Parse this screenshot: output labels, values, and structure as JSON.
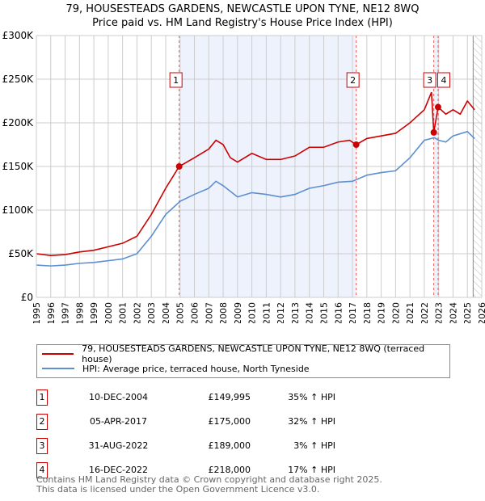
{
  "title": "79, HOUSESTEADS GARDENS, NEWCASTLE UPON TYNE, NE12 8WQ",
  "subtitle": "Price paid vs. HM Land Registry's House Price Index (HPI)",
  "chart_data": {
    "type": "line",
    "xlim": [
      1995,
      2026
    ],
    "ylim": [
      0,
      300000
    ],
    "x_ticks": [
      "1995",
      "1996",
      "1997",
      "1998",
      "1999",
      "2000",
      "2001",
      "2002",
      "2003",
      "2004",
      "2005",
      "2006",
      "2007",
      "2008",
      "2009",
      "2010",
      "2011",
      "2012",
      "2013",
      "2014",
      "2015",
      "2016",
      "2017",
      "2018",
      "2019",
      "2020",
      "2021",
      "2022",
      "2023",
      "2024",
      "2025",
      "2026"
    ],
    "y_ticks": [
      {
        "v": 0,
        "label": "£0"
      },
      {
        "v": 50000,
        "label": "£50K"
      },
      {
        "v": 100000,
        "label": "£100K"
      },
      {
        "v": 150000,
        "label": "£150K"
      },
      {
        "v": 200000,
        "label": "£200K"
      },
      {
        "v": 250000,
        "label": "£250K"
      },
      {
        "v": 300000,
        "label": "£300K"
      }
    ],
    "grid": true,
    "future_from": 2025.4,
    "series": [
      {
        "name": "79, HOUSESTEADS GARDENS, NEWCASTLE UPON TYNE, NE12 8WQ (terraced house)",
        "color": "#cc0000",
        "points": [
          [
            1995,
            50000
          ],
          [
            1996,
            48000
          ],
          [
            1997,
            49000
          ],
          [
            1998,
            52000
          ],
          [
            1999,
            54000
          ],
          [
            2000,
            58000
          ],
          [
            2001,
            62000
          ],
          [
            2002,
            70000
          ],
          [
            2003,
            95000
          ],
          [
            2004,
            125000
          ],
          [
            2004.94,
            149995
          ],
          [
            2006,
            160000
          ],
          [
            2007,
            170000
          ],
          [
            2007.5,
            180000
          ],
          [
            2008,
            175000
          ],
          [
            2008.5,
            160000
          ],
          [
            2009,
            155000
          ],
          [
            2010,
            165000
          ],
          [
            2011,
            158000
          ],
          [
            2012,
            158000
          ],
          [
            2013,
            162000
          ],
          [
            2014,
            172000
          ],
          [
            2015,
            172000
          ],
          [
            2016,
            178000
          ],
          [
            2016.8,
            180000
          ],
          [
            2017.26,
            175000
          ],
          [
            2018,
            182000
          ],
          [
            2019,
            185000
          ],
          [
            2020,
            188000
          ],
          [
            2021,
            200000
          ],
          [
            2022,
            215000
          ],
          [
            2022.5,
            235000
          ],
          [
            2022.66,
            189000
          ],
          [
            2022.96,
            218000
          ],
          [
            2023.5,
            210000
          ],
          [
            2024,
            215000
          ],
          [
            2024.5,
            210000
          ],
          [
            2025,
            225000
          ],
          [
            2025.5,
            215000
          ]
        ]
      },
      {
        "name": "HPI: Average price, terraced house, North Tyneside",
        "color": "#5b8fd0",
        "points": [
          [
            1995,
            37000
          ],
          [
            1996,
            36000
          ],
          [
            1997,
            37000
          ],
          [
            1998,
            39000
          ],
          [
            1999,
            40000
          ],
          [
            2000,
            42000
          ],
          [
            2001,
            44000
          ],
          [
            2002,
            50000
          ],
          [
            2003,
            70000
          ],
          [
            2004,
            95000
          ],
          [
            2005,
            110000
          ],
          [
            2006,
            118000
          ],
          [
            2007,
            125000
          ],
          [
            2007.5,
            133000
          ],
          [
            2008,
            128000
          ],
          [
            2009,
            115000
          ],
          [
            2010,
            120000
          ],
          [
            2011,
            118000
          ],
          [
            2012,
            115000
          ],
          [
            2013,
            118000
          ],
          [
            2014,
            125000
          ],
          [
            2015,
            128000
          ],
          [
            2016,
            132000
          ],
          [
            2017,
            133000
          ],
          [
            2018,
            140000
          ],
          [
            2019,
            143000
          ],
          [
            2020,
            145000
          ],
          [
            2021,
            160000
          ],
          [
            2022,
            180000
          ],
          [
            2022.7,
            183000
          ],
          [
            2023,
            180000
          ],
          [
            2023.5,
            178000
          ],
          [
            2024,
            185000
          ],
          [
            2025,
            190000
          ],
          [
            2025.5,
            182000
          ]
        ]
      }
    ],
    "sales": [
      {
        "n": "1",
        "date": "10-DEC-2004",
        "x": 2004.94,
        "price": "£149,995",
        "value": 149995,
        "hpi": "35% ↑ HPI"
      },
      {
        "n": "2",
        "date": "05-APR-2017",
        "x": 2017.26,
        "price": "£175,000",
        "value": 175000,
        "hpi": "32% ↑ HPI"
      },
      {
        "n": "3",
        "date": "31-AUG-2022",
        "x": 2022.66,
        "price": "£189,000",
        "value": 189000,
        "hpi": "3% ↑ HPI"
      },
      {
        "n": "4",
        "date": "16-DEC-2022",
        "x": 2022.96,
        "price": "£218,000",
        "value": 218000,
        "hpi": "17% ↑ HPI"
      }
    ]
  },
  "legend": {
    "red": "79, HOUSESTEADS GARDENS, NEWCASTLE UPON TYNE, NE12 8WQ (terraced house)",
    "blue": "HPI: Average price, terraced house, North Tyneside"
  },
  "footer": {
    "line1": "Contains HM Land Registry data © Crown copyright and database right 2025.",
    "line2": "This data is licensed under the Open Government Licence v3.0."
  }
}
